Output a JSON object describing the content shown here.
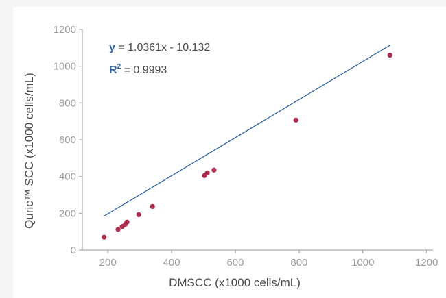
{
  "chart_data": {
    "type": "scatter",
    "xlabel": "DMSCC (x1000 cells/mL)",
    "ylabel": "Quric™ SCC (x1000 cells/mL)",
    "xlim": [
      120,
      1220
    ],
    "ylim": [
      0,
      1200
    ],
    "xticks": [
      200,
      400,
      600,
      800,
      1000,
      1200
    ],
    "yticks": [
      0,
      200,
      400,
      600,
      800,
      1000,
      1200
    ],
    "grid": false,
    "points": [
      {
        "x": 188,
        "y": 70
      },
      {
        "x": 232,
        "y": 112
      },
      {
        "x": 245,
        "y": 128
      },
      {
        "x": 255,
        "y": 140
      },
      {
        "x": 260,
        "y": 152
      },
      {
        "x": 297,
        "y": 192
      },
      {
        "x": 340,
        "y": 237
      },
      {
        "x": 503,
        "y": 405
      },
      {
        "x": 512,
        "y": 420
      },
      {
        "x": 533,
        "y": 435
      },
      {
        "x": 790,
        "y": 707
      },
      {
        "x": 1085,
        "y": 1060
      }
    ],
    "trendline": {
      "slope": 1.0361,
      "intercept": -10.132,
      "x_range": [
        188,
        1085
      ]
    },
    "equation": {
      "y_label": "y",
      "y_rest": " = 1.0361x - 10.132",
      "r_label": "R",
      "r_sup": "2",
      "r_rest": " = 0.9993"
    },
    "colors": {
      "points": "#b02a4a",
      "trendline": "#2e64a8",
      "axis": "#9a9a9a"
    }
  }
}
